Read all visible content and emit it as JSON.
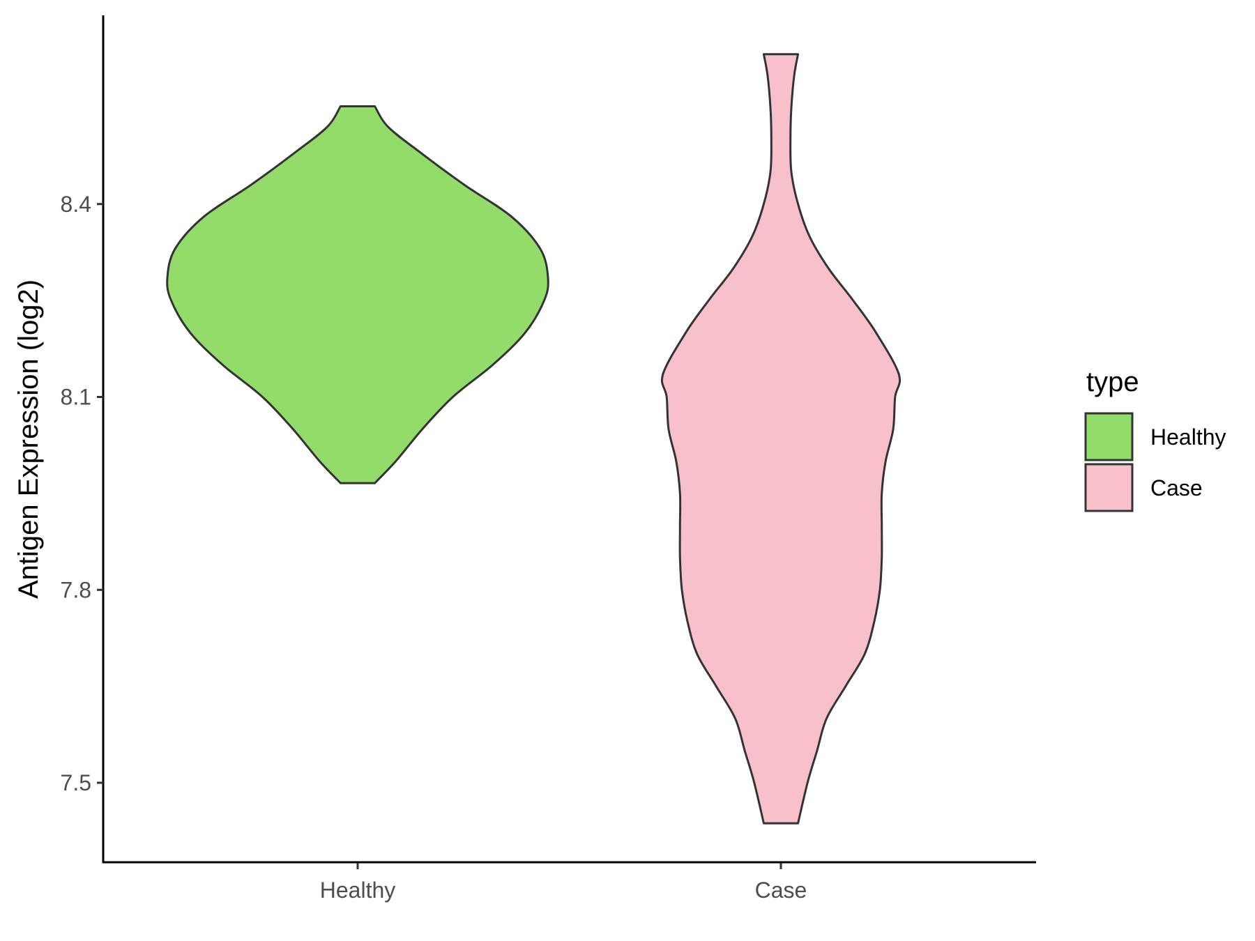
{
  "chart_data": {
    "type": "violin",
    "xlabel": "",
    "ylabel": "Antigen Expression (log2)",
    "categories": [
      "Healthy",
      "Case"
    ],
    "y_ticks": [
      7.5,
      7.8,
      8.1,
      8.4
    ],
    "y_tick_labels": [
      "7.5",
      "7.8",
      "8.1",
      "8.4"
    ],
    "ylim": [
      7.37,
      8.68
    ],
    "grid": false,
    "legend": {
      "title": "type",
      "position": "right",
      "entries": [
        {
          "label": "Healthy",
          "color": "#93dc6a"
        },
        {
          "label": "Case",
          "color": "#f7c0cb"
        }
      ]
    },
    "series": [
      {
        "name": "Healthy",
        "color": "#93dc6a",
        "min": 7.966,
        "max": 8.552,
        "density_profile": [
          {
            "y": 7.966,
            "w": 0.09
          },
          {
            "y": 8.0,
            "w": 0.2
          },
          {
            "y": 8.05,
            "w": 0.34
          },
          {
            "y": 8.1,
            "w": 0.5
          },
          {
            "y": 8.15,
            "w": 0.71
          },
          {
            "y": 8.2,
            "w": 0.88
          },
          {
            "y": 8.25,
            "w": 0.98
          },
          {
            "y": 8.285,
            "w": 1.0
          },
          {
            "y": 8.33,
            "w": 0.96
          },
          {
            "y": 8.38,
            "w": 0.81
          },
          {
            "y": 8.43,
            "w": 0.56
          },
          {
            "y": 8.48,
            "w": 0.33
          },
          {
            "y": 8.52,
            "w": 0.16
          },
          {
            "y": 8.552,
            "w": 0.09
          }
        ]
      },
      {
        "name": "Case",
        "color": "#f7c0cb",
        "min": 7.437,
        "max": 8.633,
        "density_profile": [
          {
            "y": 7.437,
            "w": 0.09
          },
          {
            "y": 7.5,
            "w": 0.14
          },
          {
            "y": 7.55,
            "w": 0.19
          },
          {
            "y": 7.6,
            "w": 0.24
          },
          {
            "y": 7.65,
            "w": 0.34
          },
          {
            "y": 7.7,
            "w": 0.44
          },
          {
            "y": 7.75,
            "w": 0.49
          },
          {
            "y": 7.8,
            "w": 0.52
          },
          {
            "y": 7.85,
            "w": 0.53
          },
          {
            "y": 7.9,
            "w": 0.53
          },
          {
            "y": 7.95,
            "w": 0.53
          },
          {
            "y": 8.0,
            "w": 0.55
          },
          {
            "y": 8.05,
            "w": 0.59
          },
          {
            "y": 8.1,
            "w": 0.6
          },
          {
            "y": 8.135,
            "w": 0.62
          },
          {
            "y": 8.2,
            "w": 0.5
          },
          {
            "y": 8.25,
            "w": 0.38
          },
          {
            "y": 8.3,
            "w": 0.25
          },
          {
            "y": 8.35,
            "w": 0.15
          },
          {
            "y": 8.4,
            "w": 0.09
          },
          {
            "y": 8.45,
            "w": 0.055
          },
          {
            "y": 8.5,
            "w": 0.05
          },
          {
            "y": 8.55,
            "w": 0.055
          },
          {
            "y": 8.6,
            "w": 0.07
          },
          {
            "y": 8.633,
            "w": 0.09
          }
        ]
      }
    ]
  }
}
